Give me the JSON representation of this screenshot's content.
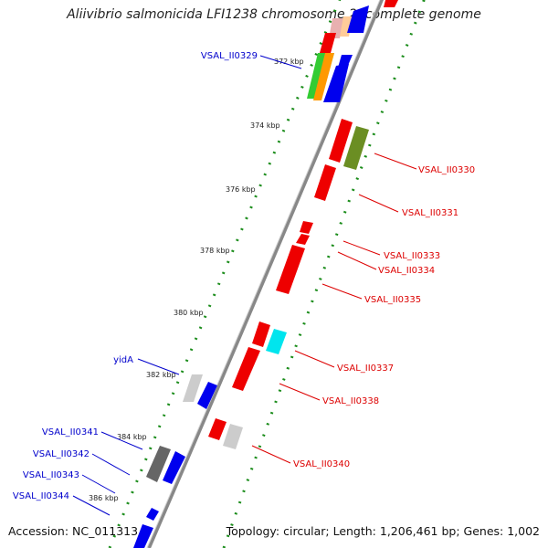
{
  "title": "Aliivibrio salmonicida LFI1238 chromosome 2, complete genome",
  "footer": {
    "accession": "Accession: NC_011313",
    "topology": "Topology: circular; Length: 1,206,461 bp; Genes: 1,002"
  },
  "colors": {
    "forward_label": "#0000cc",
    "reverse_label": "#dd0000",
    "backbone": "#888888",
    "tick_dots": "#1a8c1a"
  },
  "scale_labels": [
    "372 kbp",
    "374 kbp",
    "376 kbp",
    "378 kbp",
    "380 kbp",
    "382 kbp",
    "384 kbp",
    "386 kbp"
  ],
  "gene_labels_left": [
    "VSAL_II0329",
    "yidA",
    "VSAL_II0341",
    "VSAL_II0342",
    "VSAL_II0343",
    "VSAL_II0344"
  ],
  "gene_labels_right": [
    "VSAL_II0330",
    "VSAL_II0331",
    "VSAL_II0333",
    "VSAL_II0334",
    "VSAL_II0335",
    "VSAL_II0337",
    "VSAL_II0338",
    "VSAL_II0340"
  ]
}
